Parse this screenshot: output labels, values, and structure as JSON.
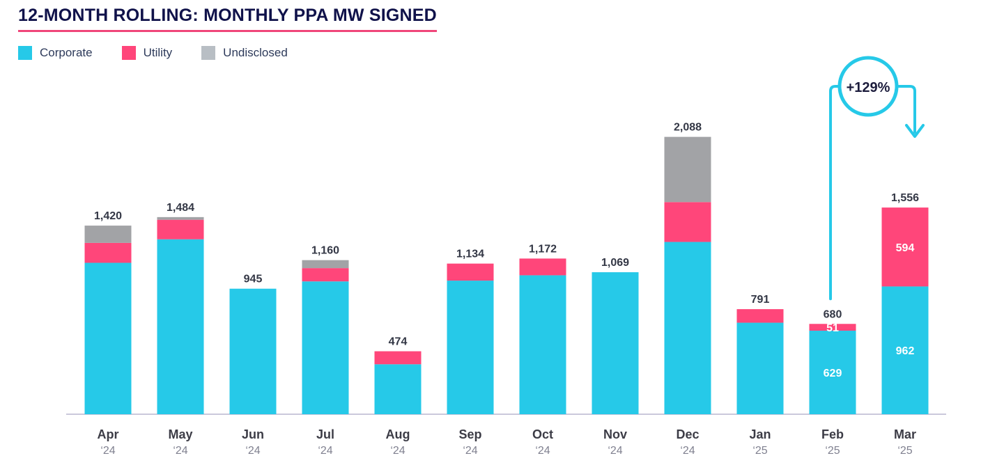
{
  "title": "12-MONTH ROLLING: MONTHLY PPA MW SIGNED",
  "chart_data": {
    "type": "bar",
    "stacked": true,
    "categories": [
      "Apr",
      "May",
      "Jun",
      "Jul",
      "Aug",
      "Sep",
      "Oct",
      "Nov",
      "Dec",
      "Jan",
      "Feb",
      "Mar"
    ],
    "years": [
      "‘24",
      "‘24",
      "‘24",
      "‘24",
      "‘24",
      "‘24",
      "‘24",
      "‘24",
      "‘24",
      "‘25",
      "‘25",
      "‘25"
    ],
    "totals": [
      "1,420",
      "1,484",
      "945",
      "1,160",
      "474",
      "1,134",
      "1,172",
      "1,069",
      "2,088",
      "791",
      "680",
      "1,556"
    ],
    "series": [
      {
        "name": "Corporate",
        "color": "#26c9e8",
        "values": [
          1140,
          1317,
          945,
          1000,
          376,
          1006,
          1046,
          1069,
          1297,
          689,
          629,
          962
        ]
      },
      {
        "name": "Utility",
        "color": "#ff467a",
        "values": [
          150,
          147,
          0,
          100,
          98,
          128,
          126,
          0,
          300,
          102,
          51,
          594
        ]
      },
      {
        "name": "Undisclosed",
        "color": "#a2a3a6",
        "values": [
          130,
          20,
          0,
          60,
          0,
          0,
          0,
          0,
          491,
          0,
          0,
          0
        ]
      }
    ],
    "segment_labels": [
      {
        "index": 10,
        "series": 0,
        "text": "629"
      },
      {
        "index": 10,
        "series": 1,
        "text": "51"
      },
      {
        "index": 11,
        "series": 0,
        "text": "962"
      },
      {
        "index": 11,
        "series": 1,
        "text": "594"
      }
    ],
    "annotation": {
      "text": "+129%",
      "from": "Feb",
      "to": "Mar"
    },
    "ylim": [
      0,
      2500
    ],
    "legend_position": "top-left",
    "grid": false
  },
  "colors": {
    "legend_undisclosed": "#b8bec4",
    "accent": "#26c9e8",
    "title": "#10124a",
    "title_underline": "#f0457a"
  }
}
